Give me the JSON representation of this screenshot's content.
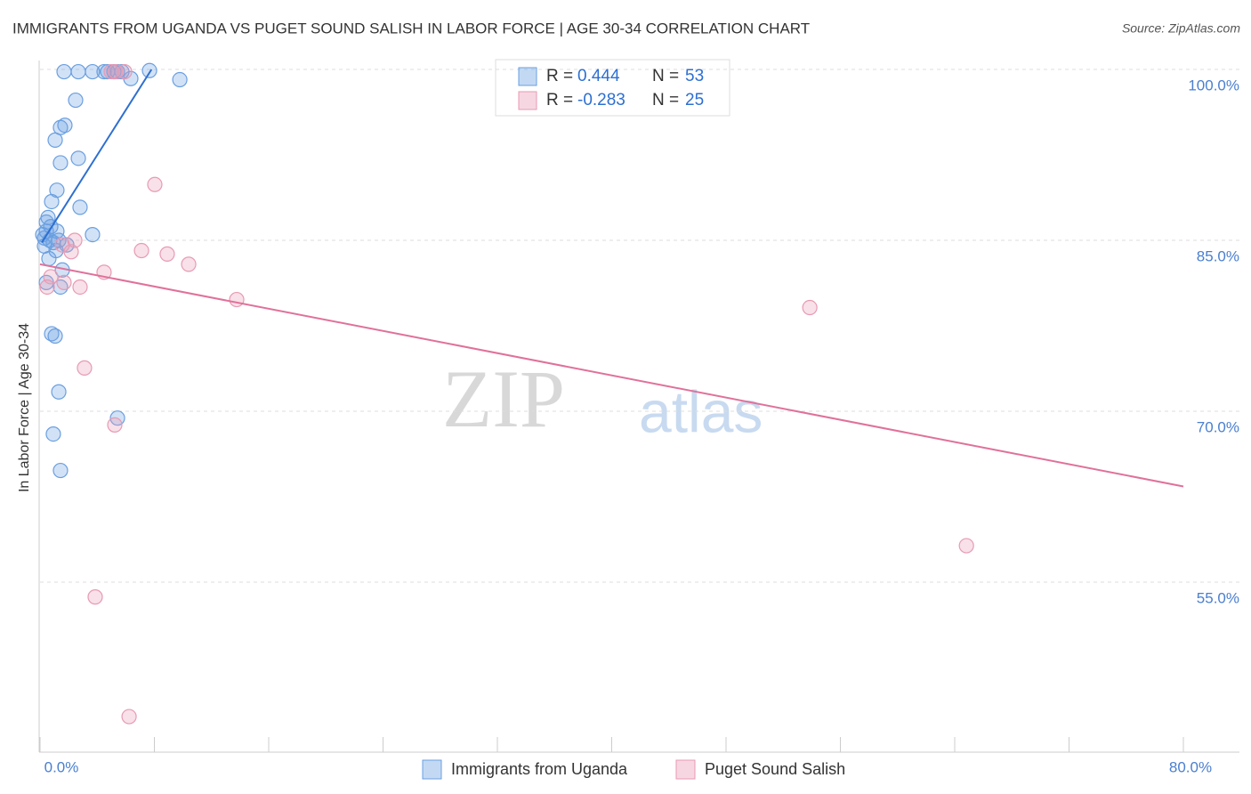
{
  "chart_data": {
    "type": "scatter",
    "title": "IMMIGRANTS FROM UGANDA VS PUGET SOUND SALISH IN LABOR FORCE | AGE 30-34 CORRELATION CHART",
    "source": "Source: ZipAtlas.com",
    "y_label": "In Labor Force | Age 30-34",
    "watermark": [
      "ZIP",
      "atlas"
    ],
    "xlim": [
      0,
      80
    ],
    "ylim": [
      40,
      101
    ],
    "xticks": [
      {
        "value": 0,
        "label": "0.0%"
      },
      {
        "value": 8,
        "label": null
      },
      {
        "value": 16,
        "label": null
      },
      {
        "value": 24,
        "label": null
      },
      {
        "value": 32,
        "label": null
      },
      {
        "value": 40,
        "label": null
      },
      {
        "value": 48,
        "label": null
      },
      {
        "value": 56,
        "label": null
      },
      {
        "value": 64,
        "label": null
      },
      {
        "value": 72,
        "label": null
      },
      {
        "value": 80,
        "label": "80.0%"
      }
    ],
    "yticks": [
      {
        "value": 55,
        "label": "55.0%"
      },
      {
        "value": 70,
        "label": "70.0%"
      },
      {
        "value": 85,
        "label": "85.0%"
      },
      {
        "value": 100,
        "label": "100.0%"
      }
    ],
    "grid": true,
    "stat_labels": [
      "R =",
      "N ="
    ],
    "series": [
      {
        "name": "Immigrants from Uganda",
        "color": "#6a9fe0",
        "line_color": "#2d6fd1",
        "r": 0.444,
        "n": 53,
        "x": [
          1.68,
          2.68,
          3.67,
          4.48,
          4.73,
          5.17,
          5.42,
          5.73,
          7.66,
          6.35,
          9.78,
          2.49,
          1.43,
          1.74,
          1.06,
          2.68,
          1.43,
          1.18,
          0.81,
          2.8,
          0.56,
          0.44,
          0.75,
          0.44,
          1.18,
          3.67,
          0.19,
          0.31,
          0.68,
          1.31,
          0.93,
          1.87,
          0.31,
          1.12,
          0.62,
          1.56,
          0.44,
          1.43,
          0.81,
          1.06,
          1.31,
          5.42,
          0.93,
          1.43
        ],
        "values": [
          99.8,
          99.8,
          99.8,
          99.8,
          99.8,
          99.8,
          99.8,
          99.8,
          99.9,
          99.2,
          99.1,
          97.3,
          94.9,
          95.1,
          93.8,
          92.2,
          91.8,
          89.4,
          88.4,
          87.9,
          87.0,
          86.6,
          86.2,
          85.8,
          85.8,
          85.5,
          85.5,
          85.2,
          85.0,
          85.0,
          84.8,
          84.6,
          84.5,
          84.1,
          83.4,
          82.4,
          81.3,
          80.9,
          76.8,
          76.6,
          71.7,
          69.4,
          68.0,
          64.8
        ],
        "trend_x": [
          0.12,
          7.8
        ],
        "trend_y": [
          84.8,
          100
        ]
      },
      {
        "name": "Puget Sound Salish",
        "color": "#e89ab3",
        "line_color": "#e0719a",
        "r": -0.283,
        "n": 25,
        "x": [
          4.98,
          5.92,
          5.29,
          8.03,
          2.43,
          7.1,
          8.9,
          2.18,
          10.4,
          4.48,
          0.75,
          1.68,
          2.8,
          0.5,
          13.76,
          53.86,
          3.11,
          5.23,
          64.82,
          3.86,
          6.23,
          1.56
        ],
        "values": [
          99.8,
          99.8,
          99.8,
          89.9,
          85.0,
          84.1,
          83.8,
          84.0,
          82.9,
          82.2,
          81.8,
          81.3,
          80.9,
          80.9,
          79.8,
          79.1,
          73.8,
          68.8,
          58.2,
          53.7,
          43.2,
          84.6
        ],
        "trend_x": [
          0,
          80
        ],
        "trend_y": [
          82.9,
          63.4
        ]
      }
    ]
  }
}
